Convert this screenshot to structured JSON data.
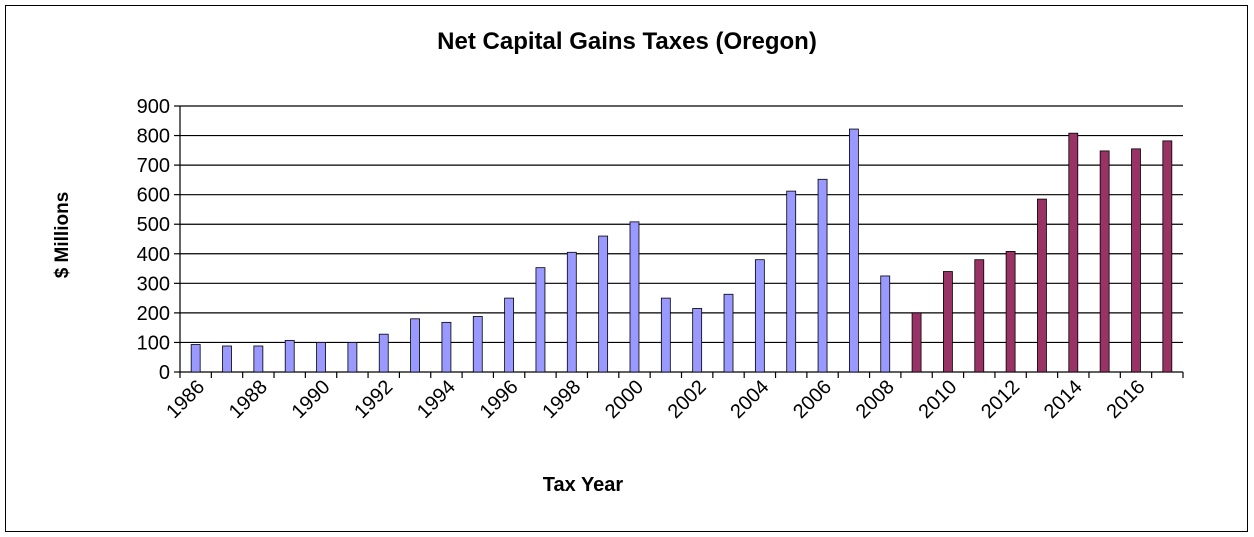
{
  "chart_data": {
    "type": "bar",
    "title": "Net Capital Gains Taxes (Oregon)",
    "xlabel": "Tax Year",
    "ylabel": "$ Millions",
    "ylim": [
      0,
      900
    ],
    "yticks": [
      0,
      100,
      200,
      300,
      400,
      500,
      600,
      700,
      800,
      900
    ],
    "grid": true,
    "categories": [
      "1986",
      "1987",
      "1988",
      "1989",
      "1990",
      "1991",
      "1992",
      "1993",
      "1994",
      "1995",
      "1996",
      "1997",
      "1998",
      "1999",
      "2000",
      "2001",
      "2002",
      "2003",
      "2004",
      "2005",
      "2006",
      "2007",
      "2008",
      "2009",
      "2010",
      "2011",
      "2012",
      "2013",
      "2014",
      "2015",
      "2016",
      "2017"
    ],
    "tick_labels": [
      "1986",
      "1988",
      "1990",
      "1992",
      "1994",
      "1996",
      "1998",
      "2000",
      "2002",
      "2004",
      "2006",
      "2008",
      "2010",
      "2012",
      "2014",
      "2016"
    ],
    "values": [
      93,
      88,
      88,
      107,
      100,
      100,
      128,
      180,
      168,
      188,
      250,
      353,
      405,
      460,
      508,
      250,
      215,
      263,
      380,
      612,
      652,
      822,
      325,
      200,
      340,
      380,
      408,
      585,
      808,
      748,
      755,
      782
    ],
    "colors": [
      "#9999ff",
      "#9999ff",
      "#9999ff",
      "#9999ff",
      "#9999ff",
      "#9999ff",
      "#9999ff",
      "#9999ff",
      "#9999ff",
      "#9999ff",
      "#9999ff",
      "#9999ff",
      "#9999ff",
      "#9999ff",
      "#9999ff",
      "#9999ff",
      "#9999ff",
      "#9999ff",
      "#9999ff",
      "#9999ff",
      "#9999ff",
      "#9999ff",
      "#9999ff",
      "#993366",
      "#993366",
      "#993366",
      "#993366",
      "#993366",
      "#993366",
      "#993366",
      "#993366",
      "#993366"
    ]
  }
}
